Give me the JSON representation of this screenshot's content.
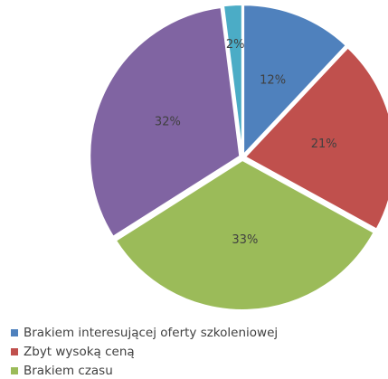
{
  "chart_data": {
    "type": "pie",
    "categories": [
      "Brakiem interesującej oferty szkoleniowej",
      "Zbyt wysoką ceną",
      "Brakiem czasu",
      null,
      null
    ],
    "values": [
      12,
      21,
      33,
      32,
      2
    ],
    "value_labels": [
      "12%",
      "21%",
      "33%",
      "32%",
      "2%"
    ],
    "colors": [
      "#4f81bd",
      "#c0504d",
      "#9bbb59",
      "#8064a2",
      "#4bacc6"
    ]
  }
}
